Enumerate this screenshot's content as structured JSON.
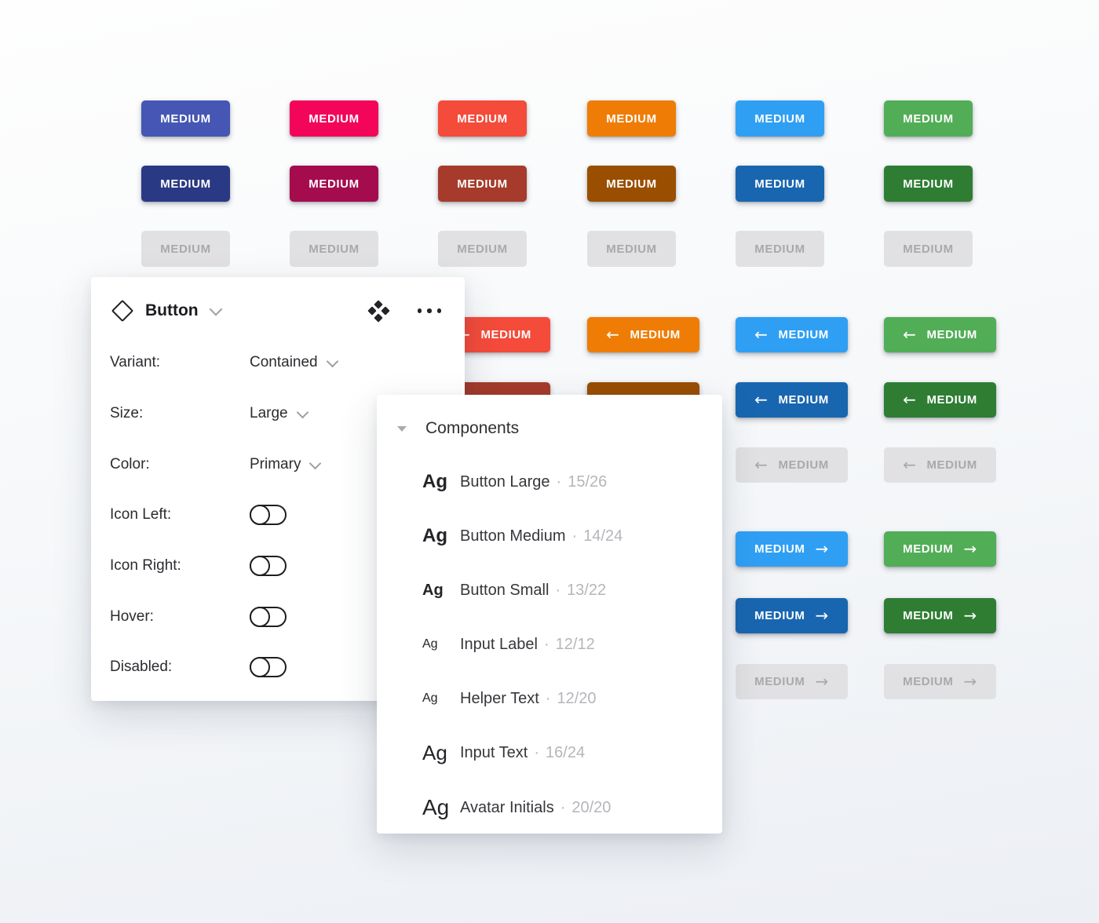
{
  "canvas": {
    "button_label": "MEDIUM"
  },
  "icons": {
    "arrow_left": "←",
    "arrow_right": "→"
  },
  "colors": {
    "background_top": "#FEFEFE",
    "background_bottom": "#ECEFF4",
    "panel_background": "#FFFFFF",
    "button_text": "#FFFFFF",
    "disabled_background": "#E1E1E3",
    "disabled_text": "#A9A9AC"
  },
  "palette": [
    {
      "name": "indigo",
      "main": "#4556B4",
      "dark": "#2A3984"
    },
    {
      "name": "pink",
      "main": "#F30659",
      "dark": "#A40C4E"
    },
    {
      "name": "red",
      "main": "#F44B3A",
      "dark": "#A63B2B"
    },
    {
      "name": "orange",
      "main": "#EF7D05",
      "dark": "#9A4E00"
    },
    {
      "name": "blue",
      "main": "#2F9FF4",
      "dark": "#1966B0"
    },
    {
      "name": "green",
      "main": "#52AD57",
      "dark": "#2E7D33"
    }
  ],
  "inspector": {
    "title": "Button",
    "rows": [
      {
        "label": "Variant:",
        "value": "Contained",
        "control": "dropdown"
      },
      {
        "label": "Size:",
        "value": "Large",
        "control": "dropdown"
      },
      {
        "label": "Color:",
        "value": "Primary",
        "control": "dropdown"
      },
      {
        "label": "Icon Left:",
        "control": "toggle",
        "state": "off"
      },
      {
        "label": "Icon Right:",
        "control": "toggle",
        "state": "off"
      },
      {
        "label": "Hover:",
        "control": "toggle",
        "state": "off"
      },
      {
        "label": "Disabled:",
        "control": "toggle",
        "state": "off"
      }
    ]
  },
  "components_panel": {
    "title": "Components",
    "dot_separator": "·",
    "items": [
      {
        "glyph": "Ag",
        "name": "Button Large",
        "size": "15/26",
        "style": "bold-lg"
      },
      {
        "glyph": "Ag",
        "name": "Button Medium",
        "size": "14/24",
        "style": "bold-lg"
      },
      {
        "glyph": "Ag",
        "name": "Button Small",
        "size": "13/22",
        "style": "bold-md"
      },
      {
        "glyph": "Ag",
        "name": "Input Label",
        "size": "12/12",
        "style": "reg-sm"
      },
      {
        "glyph": "Ag",
        "name": "Helper Text",
        "size": "12/20",
        "style": "reg-sm"
      },
      {
        "glyph": "Ag",
        "name": "Input Text",
        "size": "16/24",
        "style": "reg-lg"
      },
      {
        "glyph": "Ag",
        "name": "Avatar Initials",
        "size": "20/20",
        "style": "reg-xl"
      }
    ]
  }
}
